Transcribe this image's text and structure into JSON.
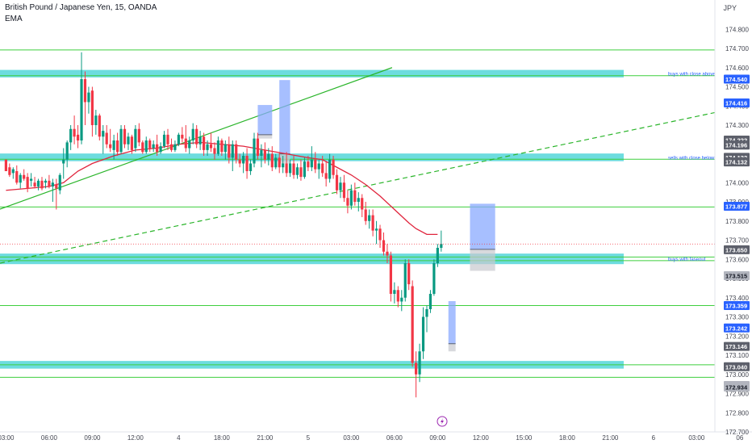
{
  "header": {
    "title": "British Pound / Japanese Yen, 15, OANDA",
    "indicator": "EMA",
    "currency": "JPY"
  },
  "colors": {
    "up": "#089981",
    "down": "#f23645",
    "ema": "#e0253d",
    "zone_fill": "#54d6d9",
    "hline": "#3ecf3e",
    "trend": "#2bb52b",
    "axis_text": "#434651",
    "label_blue": "#2962ff",
    "label_dark": "#5d606b",
    "label_gray": "#b2b5be"
  },
  "chart_data": {
    "type": "candlestick",
    "title": "British Pound / Japanese Yen, 15, OANDA",
    "ylim": [
      172.7,
      174.86
    ],
    "y_ticks": [
      "174.800",
      "174.700",
      "174.600",
      "174.500",
      "174.400",
      "174.300",
      "174.200",
      "174.100",
      "174.000",
      "173.900",
      "173.800",
      "173.700",
      "173.600",
      "173.500",
      "173.400",
      "173.300",
      "173.200",
      "173.100",
      "173.000",
      "172.900",
      "172.800",
      "172.700"
    ],
    "x_ticks": [
      {
        "label": "03:00",
        "x": 0
      },
      {
        "label": "06:00",
        "x": 12
      },
      {
        "label": "09:00",
        "x": 24
      },
      {
        "label": "12:00",
        "x": 36
      },
      {
        "label": "4",
        "x": 48
      },
      {
        "label": "18:00",
        "x": 60
      },
      {
        "label": "21:00",
        "x": 72
      },
      {
        "label": "5",
        "x": 84
      },
      {
        "label": "03:00",
        "x": 96
      },
      {
        "label": "06:00",
        "x": 108
      },
      {
        "label": "09:00",
        "x": 120
      },
      {
        "label": "12:00",
        "x": 132
      },
      {
        "label": "15:00",
        "x": 144
      },
      {
        "label": "18:00",
        "x": 156
      },
      {
        "label": "21:00",
        "x": 168
      },
      {
        "label": "6",
        "x": 180
      },
      {
        "label": "03:00",
        "x": 192
      },
      {
        "label": "06",
        "x": 204
      }
    ],
    "candles": [
      [
        0,
        174.12,
        174.12,
        174.06,
        174.06
      ],
      [
        1,
        174.08,
        174.1,
        174.03,
        174.04
      ],
      [
        2,
        174.05,
        174.08,
        174.02,
        174.07
      ],
      [
        3,
        174.06,
        174.09,
        173.99,
        174.0
      ],
      [
        4,
        174.0,
        174.05,
        173.97,
        174.04
      ],
      [
        5,
        174.04,
        174.07,
        174.01,
        174.02
      ],
      [
        6,
        174.03,
        174.05,
        173.95,
        173.97
      ],
      [
        7,
        174.01,
        174.05,
        173.98,
        174.02
      ],
      [
        8,
        174.0,
        174.03,
        173.97,
        173.98
      ],
      [
        9,
        173.98,
        174.02,
        173.96,
        174.01
      ],
      [
        10,
        174.01,
        174.03,
        173.96,
        173.97
      ],
      [
        11,
        174.0,
        174.02,
        173.97,
        174.01
      ],
      [
        12,
        174.01,
        174.04,
        173.97,
        173.98
      ],
      [
        13,
        173.98,
        174.02,
        173.9,
        174.0
      ],
      [
        14,
        173.99,
        174.02,
        173.86,
        173.97
      ],
      [
        15,
        173.96,
        174.05,
        173.94,
        174.04
      ],
      [
        16,
        174.1,
        174.18,
        174.02,
        174.12
      ],
      [
        17,
        174.12,
        174.22,
        174.08,
        174.21
      ],
      [
        18,
        174.21,
        174.3,
        174.17,
        174.28
      ],
      [
        19,
        174.28,
        174.35,
        174.2,
        174.24
      ],
      [
        20,
        174.25,
        174.3,
        174.18,
        174.22
      ],
      [
        21,
        174.22,
        174.68,
        174.2,
        174.54
      ],
      [
        22,
        174.54,
        174.58,
        174.3,
        174.42
      ],
      [
        23,
        174.42,
        174.5,
        174.36,
        174.47
      ],
      [
        24,
        174.48,
        174.5,
        174.24,
        174.3
      ],
      [
        25,
        174.3,
        174.38,
        174.25,
        174.35
      ],
      [
        26,
        174.35,
        174.36,
        174.22,
        174.24
      ],
      [
        27,
        174.24,
        174.3,
        174.15,
        174.27
      ],
      [
        28,
        174.26,
        174.3,
        174.18,
        174.2
      ],
      [
        29,
        174.2,
        174.28,
        174.16,
        174.18
      ],
      [
        30,
        174.17,
        174.25,
        174.12,
        174.22
      ],
      [
        31,
        174.22,
        174.26,
        174.14,
        174.16
      ],
      [
        32,
        174.16,
        174.3,
        174.15,
        174.28
      ],
      [
        33,
        174.28,
        174.3,
        174.18,
        174.2
      ],
      [
        34,
        174.2,
        174.26,
        174.17,
        174.24
      ],
      [
        35,
        174.24,
        174.25,
        174.15,
        174.17
      ],
      [
        36,
        174.18,
        174.3,
        174.16,
        174.28
      ],
      [
        37,
        174.28,
        174.31,
        174.19,
        174.21
      ],
      [
        38,
        174.21,
        174.22,
        174.15,
        174.16
      ],
      [
        39,
        174.16,
        174.24,
        174.15,
        174.22
      ],
      [
        40,
        174.22,
        174.23,
        174.16,
        174.18
      ],
      [
        41,
        174.18,
        174.22,
        174.16,
        174.2
      ],
      [
        42,
        174.2,
        174.25,
        174.14,
        174.16
      ],
      [
        43,
        174.16,
        174.21,
        174.15,
        174.19
      ],
      [
        44,
        174.19,
        174.27,
        174.18,
        174.25
      ],
      [
        45,
        174.25,
        174.28,
        174.17,
        174.2
      ],
      [
        46,
        174.2,
        174.23,
        174.16,
        174.17
      ],
      [
        47,
        174.17,
        174.22,
        174.16,
        174.2
      ],
      [
        48,
        174.2,
        174.26,
        174.19,
        174.25
      ],
      [
        49,
        174.25,
        174.29,
        174.21,
        174.23
      ],
      [
        50,
        174.23,
        174.3,
        174.16,
        174.18
      ],
      [
        51,
        174.18,
        174.24,
        174.15,
        174.22
      ],
      [
        52,
        174.22,
        174.31,
        174.2,
        174.28
      ],
      [
        53,
        174.28,
        174.3,
        174.18,
        174.2
      ],
      [
        54,
        174.2,
        174.27,
        174.17,
        174.24
      ],
      [
        55,
        174.24,
        174.26,
        174.14,
        174.17
      ],
      [
        56,
        174.17,
        174.22,
        174.14,
        174.2
      ],
      [
        57,
        174.2,
        174.26,
        174.16,
        174.18
      ],
      [
        58,
        174.18,
        174.21,
        174.12,
        174.15
      ],
      [
        59,
        174.15,
        174.24,
        174.14,
        174.22
      ],
      [
        60,
        174.22,
        174.23,
        174.14,
        174.16
      ],
      [
        61,
        174.16,
        174.22,
        174.12,
        174.2
      ],
      [
        62,
        174.2,
        174.24,
        174.1,
        174.13
      ],
      [
        63,
        174.13,
        174.22,
        174.06,
        174.2
      ],
      [
        64,
        174.2,
        174.22,
        174.1,
        174.12
      ],
      [
        65,
        174.12,
        174.15,
        174.08,
        174.1
      ],
      [
        66,
        174.1,
        174.16,
        174.05,
        174.14
      ],
      [
        67,
        174.14,
        174.18,
        174.02,
        174.06
      ],
      [
        68,
        174.06,
        174.12,
        174.04,
        174.1
      ],
      [
        69,
        174.1,
        174.26,
        174.08,
        174.23
      ],
      [
        70,
        174.23,
        174.26,
        174.12,
        174.14
      ],
      [
        71,
        174.14,
        174.2,
        174.08,
        174.17
      ],
      [
        72,
        174.17,
        174.21,
        174.1,
        174.12
      ],
      [
        73,
        174.12,
        174.18,
        174.09,
        174.15
      ],
      [
        74,
        174.15,
        174.19,
        174.06,
        174.08
      ],
      [
        75,
        174.08,
        174.15,
        174.07,
        174.13
      ],
      [
        76,
        174.13,
        174.16,
        174.05,
        174.08
      ],
      [
        77,
        174.08,
        174.14,
        174.05,
        174.1
      ],
      [
        78,
        174.1,
        174.16,
        174.03,
        174.05
      ],
      [
        79,
        174.05,
        174.12,
        174.03,
        174.1
      ],
      [
        80,
        174.1,
        174.14,
        174.02,
        174.04
      ],
      [
        81,
        174.04,
        174.1,
        174.02,
        174.08
      ],
      [
        82,
        174.08,
        174.12,
        174.01,
        174.03
      ],
      [
        83,
        174.03,
        174.13,
        174.02,
        174.11
      ],
      [
        84,
        174.11,
        174.14,
        174.06,
        174.08
      ],
      [
        85,
        174.08,
        174.19,
        174.06,
        174.12
      ],
      [
        86,
        174.12,
        174.16,
        174.05,
        174.07
      ],
      [
        87,
        174.07,
        174.12,
        174.02,
        174.1
      ],
      [
        88,
        174.1,
        174.14,
        174.03,
        174.05
      ],
      [
        89,
        174.05,
        174.11,
        173.98,
        174.02
      ],
      [
        90,
        174.02,
        174.15,
        174.0,
        174.12
      ],
      [
        91,
        174.12,
        174.14,
        174.02,
        174.04
      ],
      [
        92,
        174.04,
        174.07,
        173.94,
        173.96
      ],
      [
        93,
        173.96,
        174.03,
        173.92,
        174.0
      ],
      [
        94,
        174.0,
        174.04,
        173.9,
        173.92
      ],
      [
        95,
        173.92,
        173.96,
        173.84,
        173.88
      ],
      [
        96,
        173.88,
        173.99,
        173.86,
        173.96
      ],
      [
        97,
        173.96,
        174.0,
        173.88,
        173.9
      ],
      [
        98,
        173.9,
        173.95,
        173.85,
        173.92
      ],
      [
        99,
        173.92,
        173.94,
        173.82,
        173.86
      ],
      [
        100,
        173.86,
        173.9,
        173.78,
        173.8
      ],
      [
        101,
        173.8,
        173.86,
        173.76,
        173.83
      ],
      [
        102,
        173.83,
        173.86,
        173.72,
        173.75
      ],
      [
        103,
        173.75,
        173.8,
        173.68,
        173.76
      ],
      [
        104,
        173.76,
        173.78,
        173.66,
        173.7
      ],
      [
        105,
        173.7,
        173.74,
        173.62,
        173.64
      ],
      [
        106,
        173.64,
        173.68,
        173.58,
        173.62
      ],
      [
        107,
        173.62,
        173.64,
        173.38,
        173.42
      ],
      [
        108,
        173.42,
        173.48,
        173.37,
        173.44
      ],
      [
        109,
        173.44,
        173.46,
        173.35,
        173.38
      ],
      [
        110,
        173.38,
        173.44,
        173.33,
        173.4
      ],
      [
        111,
        173.4,
        173.6,
        173.38,
        173.58
      ],
      [
        112,
        173.58,
        173.6,
        173.44,
        173.47
      ],
      [
        113,
        173.46,
        173.49,
        173.04,
        173.06
      ],
      [
        114,
        173.06,
        173.12,
        172.88,
        173.0
      ],
      [
        115,
        173.0,
        173.16,
        172.96,
        173.12
      ],
      [
        116,
        173.12,
        173.35,
        173.08,
        173.3
      ],
      [
        117,
        173.3,
        173.36,
        173.22,
        173.34
      ],
      [
        118,
        173.34,
        173.44,
        173.32,
        173.42
      ],
      [
        119,
        173.42,
        173.6,
        173.41,
        173.58
      ],
      [
        120,
        173.58,
        173.68,
        173.56,
        173.66
      ],
      [
        121,
        173.66,
        173.75,
        173.64,
        173.68
      ]
    ],
    "ema": [
      [
        0,
        173.96
      ],
      [
        6,
        173.97
      ],
      [
        12,
        173.98
      ],
      [
        16,
        174.0
      ],
      [
        20,
        174.06
      ],
      [
        24,
        174.1
      ],
      [
        30,
        174.14
      ],
      [
        36,
        174.17
      ],
      [
        42,
        174.18
      ],
      [
        48,
        174.2
      ],
      [
        54,
        174.21
      ],
      [
        60,
        174.2
      ],
      [
        66,
        174.19
      ],
      [
        72,
        174.17
      ],
      [
        78,
        174.15
      ],
      [
        84,
        174.13
      ],
      [
        88,
        174.12
      ],
      [
        92,
        174.08
      ],
      [
        96,
        174.04
      ],
      [
        100,
        173.99
      ],
      [
        104,
        173.93
      ],
      [
        108,
        173.86
      ],
      [
        112,
        173.79
      ],
      [
        114,
        173.76
      ],
      [
        117,
        173.73
      ],
      [
        120,
        173.73
      ]
    ],
    "hlines": [
      {
        "price": 174.692
      },
      {
        "price": 174.558
      },
      {
        "price": 174.122
      },
      {
        "price": 173.873
      },
      {
        "price": 173.612
      },
      {
        "price": 173.593
      },
      {
        "price": 173.359
      },
      {
        "price": 173.05
      },
      {
        "price": 172.985
      }
    ],
    "zones": [
      {
        "y1": 174.549,
        "y2": 174.588,
        "label": "buys with close above"
      },
      {
        "y1": 174.112,
        "y2": 174.152,
        "label": "sells with close below"
      },
      {
        "y1": 173.575,
        "y2": 173.63,
        "label": "buys with faseout"
      },
      {
        "y1": 173.03,
        "y2": 173.07,
        "label": ""
      }
    ],
    "trendlines": [
      {
        "x1": 0,
        "y1": 173.862,
        "x2": 109,
        "y2": 174.6,
        "style": "solid"
      },
      {
        "x1": 0,
        "y1": 173.58,
        "x2": 210,
        "y2": 174.41,
        "style": "dashed"
      }
    ],
    "price_labels": [
      {
        "text": "174.540",
        "price": 174.54,
        "kind": "blue"
      },
      {
        "text": "174.416",
        "price": 174.416,
        "kind": "blue"
      },
      {
        "text": "174.222",
        "price": 174.222,
        "kind": "dark"
      },
      {
        "text": "174.196",
        "price": 174.196,
        "kind": "dark"
      },
      {
        "text": "174.132",
        "price": 174.132,
        "kind": "dark"
      },
      {
        "text": "174.132",
        "price": 174.108,
        "kind": "dark"
      },
      {
        "text": "173.877",
        "price": 173.877,
        "kind": "blue"
      },
      {
        "text": "173.650",
        "price": 173.65,
        "kind": "dark"
      },
      {
        "text": "173.515",
        "price": 173.515,
        "kind": "gray"
      },
      {
        "text": "173.359",
        "price": 173.359,
        "kind": "blue"
      },
      {
        "text": "173.242",
        "price": 173.242,
        "kind": "blue"
      },
      {
        "text": "173.146",
        "price": 173.146,
        "kind": "dark"
      },
      {
        "text": "173.040",
        "price": 173.04,
        "kind": "dark"
      },
      {
        "text": "172.942",
        "price": 172.942,
        "kind": "gray"
      },
      {
        "text": "172.934",
        "price": 172.934,
        "kind": "gray"
      }
    ],
    "positions": [
      {
        "x1": 70,
        "x2": 74,
        "profit_top": 174.405,
        "entry": 174.25,
        "loss_bottom": 174.23
      },
      {
        "x1": 76,
        "x2": 79,
        "profit_top": 174.535,
        "entry": 174.15,
        "loss_bottom": 174.1
      },
      {
        "x1": 129,
        "x2": 136,
        "profit_top": 173.89,
        "entry": 173.652,
        "loss_bottom": 173.54
      },
      {
        "x1": 123,
        "x2": 125,
        "profit_top": 173.382,
        "entry": 173.16,
        "loss_bottom": 173.12
      }
    ],
    "grid": false
  }
}
